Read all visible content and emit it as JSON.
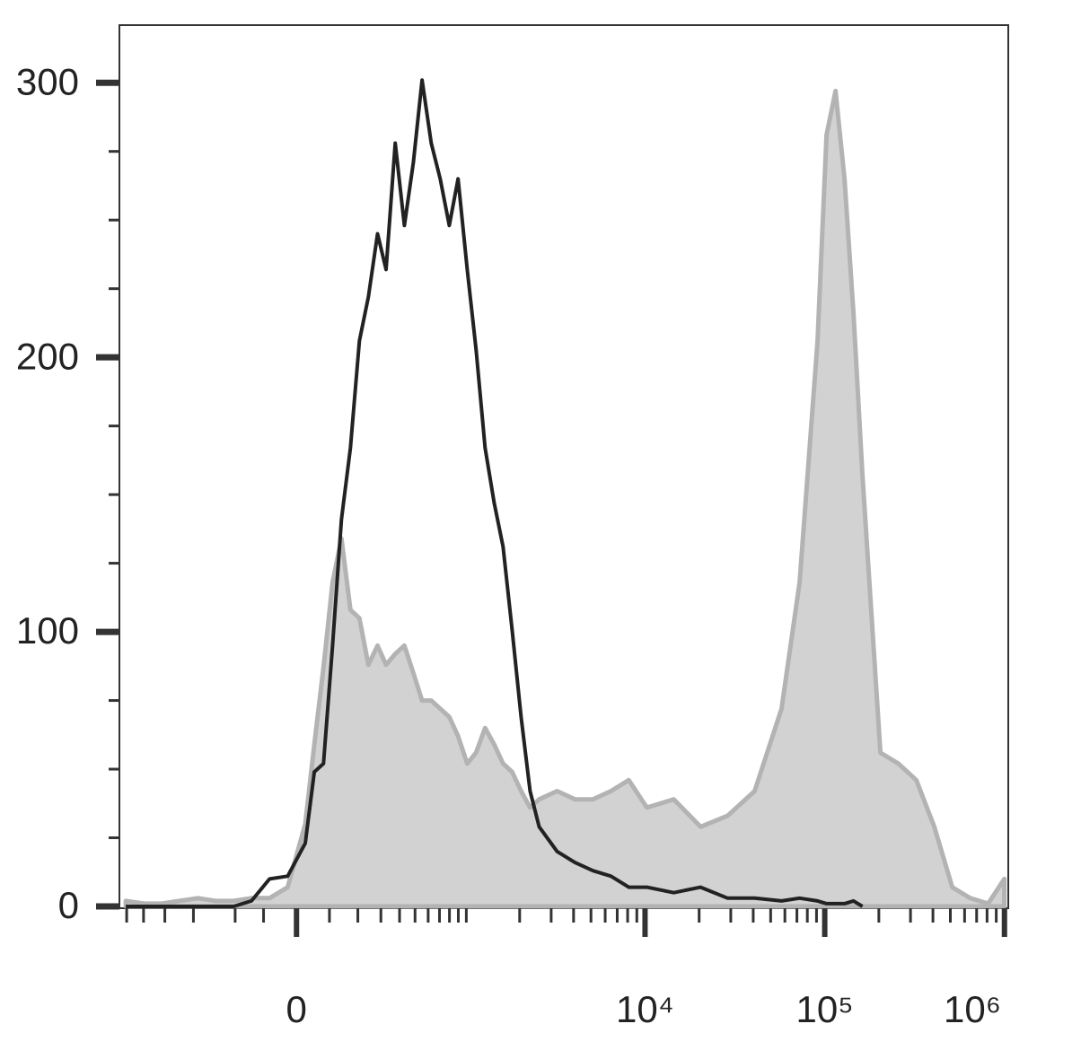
{
  "chart_data": {
    "type": "line",
    "xscale": "asinh",
    "xlim": [
      -1100,
      1050000
    ],
    "ylim": [
      0,
      321
    ],
    "yticks": [
      0,
      100,
      200,
      300
    ],
    "yminorticks": [
      25,
      50,
      75,
      125,
      150,
      175,
      225,
      250,
      275
    ],
    "xticks": [
      {
        "value": 0,
        "label": "0"
      },
      {
        "value": 10000,
        "label": "10⁴"
      },
      {
        "value": 100000,
        "label": "10⁵"
      },
      {
        "value": 1000000,
        "label": "10⁶"
      }
    ],
    "xminorticks": [
      -1000,
      -800,
      -600,
      -400,
      -200,
      -100,
      100,
      200,
      300,
      400,
      500,
      600,
      700,
      800,
      900,
      1000,
      2000,
      3000,
      4000,
      5000,
      6000,
      7000,
      8000,
      9000,
      20000,
      30000,
      40000,
      50000,
      60000,
      70000,
      80000,
      90000,
      200000,
      300000,
      400000,
      500000,
      600000,
      700000,
      800000,
      900000
    ],
    "x": [
      -1012,
      -798,
      -626,
      -488,
      -375,
      -284,
      -206,
      -140,
      -81,
      -26,
      26,
      53,
      81,
      110,
      140,
      172,
      206,
      243,
      284,
      326,
      375,
      429,
      488,
      552,
      626,
      707,
      798,
      897,
      1012,
      1136,
      1279,
      1438,
      1614,
      1813,
      2038,
      2287,
      2569,
      3236,
      4071,
      5129,
      6463,
      8119,
      10235,
      14444,
      20378,
      28819,
      40710,
      57500,
      72450,
      91195,
      102350,
      114770,
      128800,
      144555,
      162150,
      204125,
      256910,
      323380,
      406870,
      512210,
      644920,
      811900,
      998200
    ],
    "series": [
      {
        "color": "#b3b3b3",
        "fill": "#d2d2d2",
        "values": [
          2,
          1,
          1,
          2,
          3,
          2,
          2,
          3,
          3,
          7,
          30,
          59,
          87,
          118,
          134,
          108,
          105,
          88,
          95,
          88,
          92,
          95,
          85,
          75,
          75,
          72,
          69,
          62,
          52,
          56,
          65,
          59,
          52,
          49,
          42,
          36,
          39,
          42,
          39,
          39,
          42,
          46,
          36,
          39,
          29,
          33,
          42,
          72,
          118,
          206,
          281,
          297,
          265,
          216,
          157,
          56,
          52,
          46,
          29,
          7,
          3,
          1,
          10
        ]
      },
      {
        "color": "#222222",
        "values": [
          0,
          0,
          0,
          0,
          0,
          0,
          0,
          2,
          10,
          11,
          23,
          49,
          52,
          95,
          141,
          167,
          206,
          222,
          245,
          232,
          278,
          248,
          271,
          301,
          278,
          265,
          248,
          265,
          232,
          203,
          167,
          147,
          131,
          101,
          69,
          42,
          29,
          20,
          16,
          13,
          11,
          7,
          7,
          5,
          7,
          3,
          3,
          2,
          3,
          2,
          1,
          1,
          1,
          2,
          0,
          null,
          null,
          null,
          null,
          null,
          null,
          null,
          null
        ]
      }
    ]
  }
}
